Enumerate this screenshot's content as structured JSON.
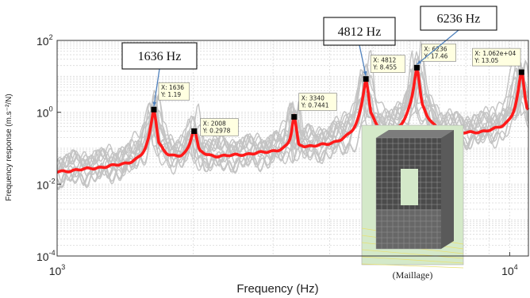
{
  "colors": {
    "mean_curve": "#ff1a1a",
    "sample_curves": "#c4c4c4",
    "grid": "#d9d9d9",
    "callout_arrow": "#4f81bd",
    "datatip_bg": "#ffffe1"
  },
  "chart_data": {
    "type": "line",
    "title": "",
    "xlabel": "Frequency (Hz)",
    "ylabel": "Frequency response (m.s⁻²/N)",
    "xscale": "log",
    "yscale": "log",
    "xlim": [
      1000,
      11000
    ],
    "ylim": [
      0.0001,
      100
    ],
    "grid": true,
    "x_ticks": [
      {
        "base": "10",
        "exp": "3"
      },
      {
        "base": "10",
        "exp": "4"
      }
    ],
    "y_ticks": [
      {
        "base": "10",
        "exp": "2"
      },
      {
        "base": "10",
        "exp": "0"
      },
      {
        "base": "10",
        "exp": "-2"
      },
      {
        "base": "10",
        "exp": "-4"
      }
    ],
    "peaks": [
      {
        "x": 1636,
        "y": 1.19
      },
      {
        "x": 2008,
        "y": 0.2978
      },
      {
        "x": 3340,
        "y": 0.7441
      },
      {
        "x": 4812,
        "y": 8.455
      },
      {
        "x": 6236,
        "y": 17.46
      },
      {
        "x": 10620,
        "y": 13.05
      }
    ],
    "data_tips": [
      {
        "x_text": "X: 1636",
        "y_text": "Y: 1.19"
      },
      {
        "x_text": "X: 2008",
        "y_text": "Y: 0.2978"
      },
      {
        "x_text": "X: 3340",
        "y_text": "Y: 0.7441"
      },
      {
        "x_text": "X: 4812",
        "y_text": "Y: 8.455"
      },
      {
        "x_text": "X: 6236",
        "y_text": "Y: 17.46"
      },
      {
        "x_text": "X: 1.062e+04",
        "y_text": "Y: 13.05"
      }
    ],
    "callouts": [
      "1636 Hz",
      "4812 Hz",
      "6236 Hz"
    ],
    "inset_caption": "(Maillage)"
  }
}
